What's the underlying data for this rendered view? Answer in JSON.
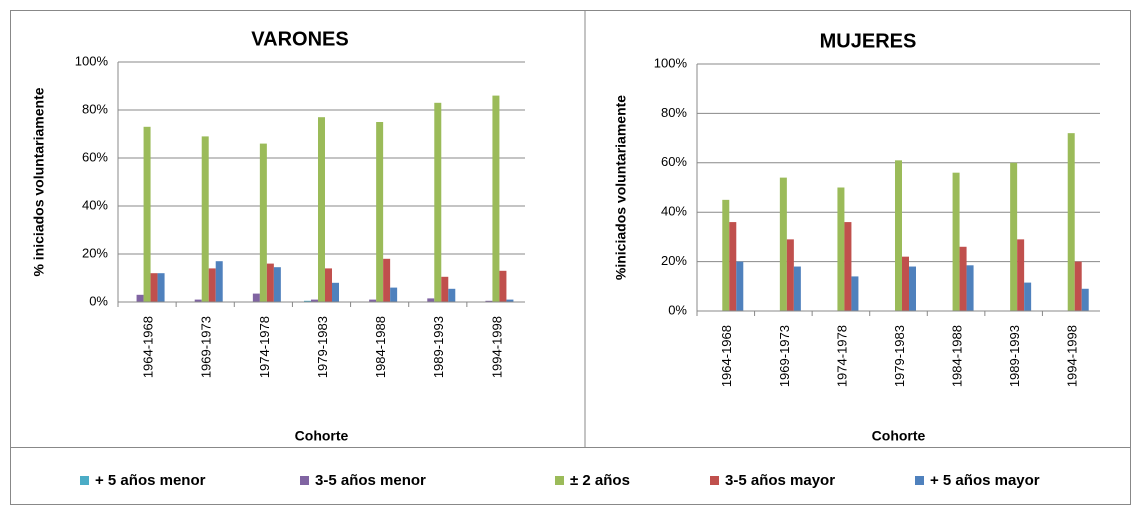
{
  "legend": [
    {
      "name": "+ 5 años menor",
      "color": "#4bacc6"
    },
    {
      "name": "3-5 años menor",
      "color": "#8064a2"
    },
    {
      "name": "± 2 años",
      "color": "#9bbb59"
    },
    {
      "name": "3-5 años mayor",
      "color": "#c0504d"
    },
    {
      "name": "+ 5 años mayor",
      "color": "#4f81bd"
    }
  ],
  "chart_data": [
    {
      "type": "bar",
      "title": "VARONES",
      "x_label": "Cohorte",
      "y_label": "% iniciados voluntariamente",
      "categories": [
        "1964-1968",
        "1969-1973",
        "1974-1978",
        "1979-1983",
        "1984-1988",
        "1989-1993",
        "1994-1998"
      ],
      "series": [
        {
          "values": [
            0,
            0,
            0,
            0.5,
            0,
            0,
            0
          ]
        },
        {
          "values": [
            3,
            1,
            3.5,
            1,
            1,
            1.5,
            0.5
          ]
        },
        {
          "values": [
            73,
            69,
            66,
            77,
            75,
            83,
            86
          ]
        },
        {
          "values": [
            12,
            14,
            16,
            14,
            18,
            10.5,
            13
          ]
        },
        {
          "values": [
            12,
            17,
            14.5,
            8,
            6,
            5.5,
            1
          ]
        }
      ],
      "ylim": [
        0,
        100
      ],
      "yticks": [
        {
          "value": 0,
          "label": "0%"
        },
        {
          "value": 20,
          "label": "20%"
        },
        {
          "value": 40,
          "label": "40%"
        },
        {
          "value": 60,
          "label": "60%"
        },
        {
          "value": 80,
          "label": "80%"
        },
        {
          "value": 100,
          "label": "100%"
        }
      ],
      "grid": true
    },
    {
      "type": "bar",
      "title": "MUJERES",
      "x_label": "Cohorte",
      "y_label": "%iniciados  voluntariamente",
      "categories": [
        "1964-1968",
        "1969-1973",
        "1974-1978",
        "1979-1983",
        "1984-1988",
        "1989-1993",
        "1994-1998"
      ],
      "series": [
        {
          "values": [
            0,
            0,
            0,
            0,
            0,
            0,
            0
          ]
        },
        {
          "values": [
            0,
            0,
            0,
            0,
            0,
            0,
            0
          ]
        },
        {
          "values": [
            45,
            54,
            50,
            61,
            56,
            60,
            72
          ]
        },
        {
          "values": [
            36,
            29,
            36,
            22,
            26,
            29,
            20
          ]
        },
        {
          "values": [
            20,
            18,
            14,
            18,
            18.5,
            11.5,
            9
          ]
        }
      ],
      "ylim": [
        0,
        100
      ],
      "yticks": [
        {
          "value": 0,
          "label": "0%"
        },
        {
          "value": 20,
          "label": "20%"
        },
        {
          "value": 40,
          "label": "40%"
        },
        {
          "value": 60,
          "label": "60%"
        },
        {
          "value": 80,
          "label": "80%"
        },
        {
          "value": 100,
          "label": "100%"
        }
      ],
      "grid": true
    }
  ]
}
